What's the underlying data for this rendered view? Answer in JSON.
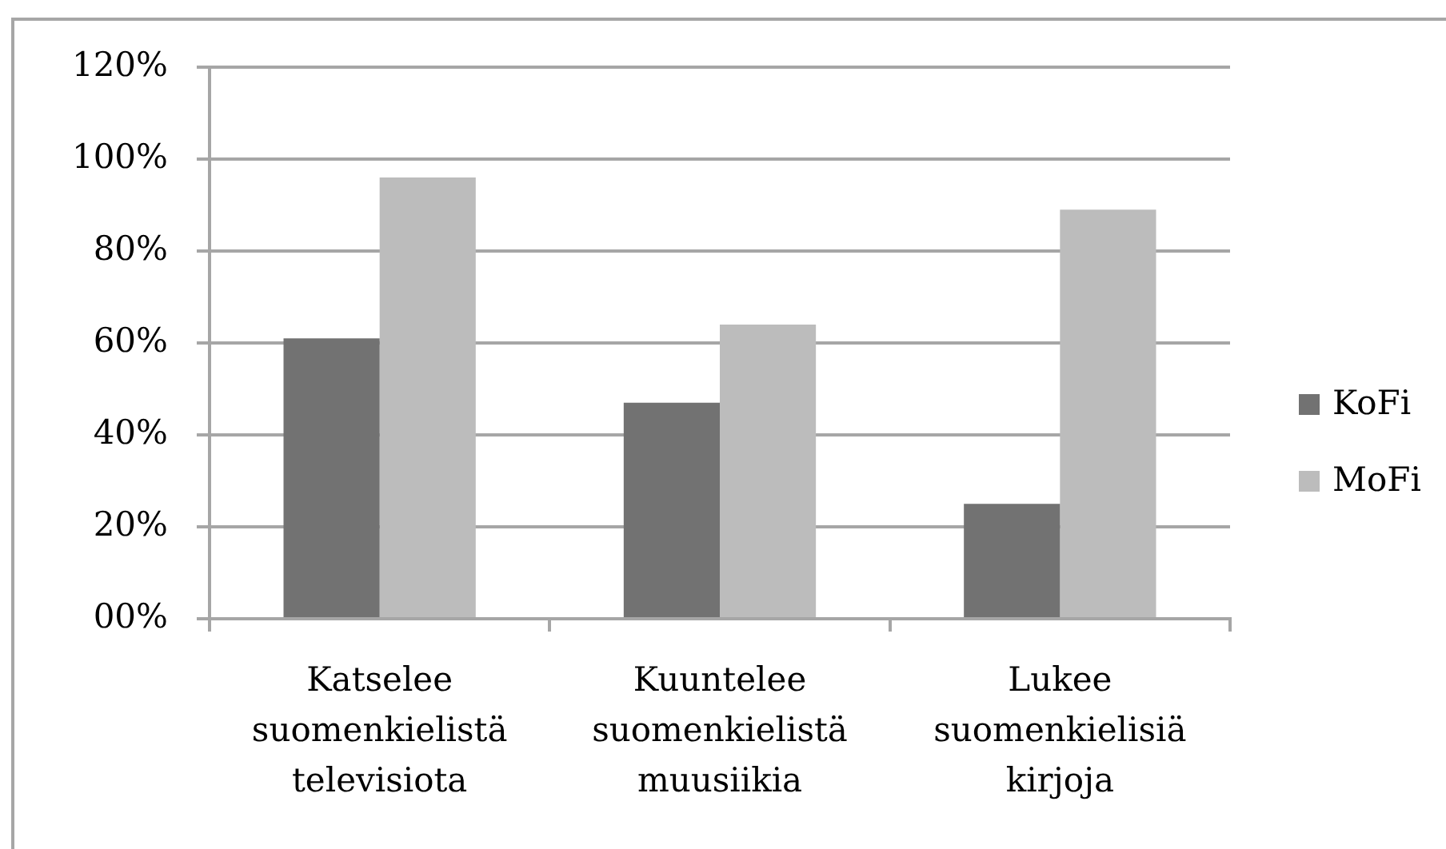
{
  "chart_data": {
    "type": "bar",
    "categories": [
      "Katselee suomenkielistä televisiota",
      "Kuuntelee suomenkielistä muusiikia",
      "Lukee suomenkielisiä kirjoja"
    ],
    "series": [
      {
        "name": "KoFi",
        "color": "#727272",
        "values": [
          61,
          47,
          25
        ]
      },
      {
        "name": "MoFi",
        "color": "#bcbcbc",
        "values": [
          96,
          64,
          89
        ]
      }
    ],
    "ylim": [
      0,
      120
    ],
    "yticks": [
      {
        "value": 0,
        "label": "00%"
      },
      {
        "value": 20,
        "label": "20%"
      },
      {
        "value": 40,
        "label": "40%"
      },
      {
        "value": 60,
        "label": "60%"
      },
      {
        "value": 80,
        "label": "80%"
      },
      {
        "value": 100,
        "label": "100%"
      },
      {
        "value": 120,
        "label": "120%"
      }
    ],
    "grid": "y",
    "legend": "right"
  }
}
